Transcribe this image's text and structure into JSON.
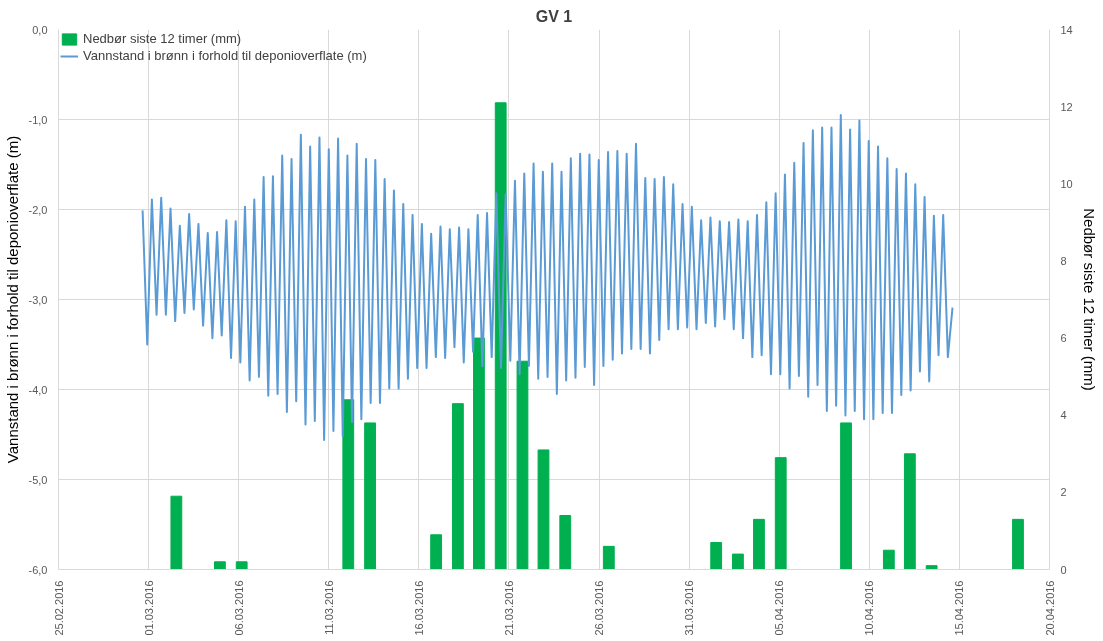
{
  "chart_data": {
    "type": "line",
    "title": "GV 1",
    "ylabel": "Vannstand i brønn i forhold til deponioverflate (m)",
    "y2label": "Nedbør siste 12 timer (mm)",
    "xlim": [
      "2016-02-25",
      "2016-04-20"
    ],
    "xticks": [
      {
        "value": "2016-02-25",
        "label": "25.02.2016"
      },
      {
        "value": "2016-03-01",
        "label": "01.03.2016"
      },
      {
        "value": "2016-03-06",
        "label": "06.03.2016"
      },
      {
        "value": "2016-03-11",
        "label": "11.03.2016"
      },
      {
        "value": "2016-03-16",
        "label": "16.03.2016"
      },
      {
        "value": "2016-03-21",
        "label": "21.03.2016"
      },
      {
        "value": "2016-03-26",
        "label": "26.03.2016"
      },
      {
        "value": "2016-03-31",
        "label": "31.03.2016"
      },
      {
        "value": "2016-04-05",
        "label": "05.04.2016"
      },
      {
        "value": "2016-04-10",
        "label": "10.04.2016"
      },
      {
        "value": "2016-04-15",
        "label": "15.04.2016"
      },
      {
        "value": "2016-04-20",
        "label": "20.04.2016"
      }
    ],
    "ylim": [
      -6,
      0
    ],
    "yticks": [
      {
        "value": 0,
        "label": "0,0"
      },
      {
        "value": -1,
        "label": "-1,0"
      },
      {
        "value": -2,
        "label": "-2,0"
      },
      {
        "value": -3,
        "label": "-3,0"
      },
      {
        "value": -4,
        "label": "-4,0"
      },
      {
        "value": -5,
        "label": "-5,0"
      },
      {
        "value": -6,
        "label": "-6,0"
      }
    ],
    "y2lim": [
      0,
      14
    ],
    "y2ticks": [
      0,
      2,
      4,
      6,
      8,
      10,
      12,
      14
    ],
    "grid": true,
    "legend": "top left",
    "series": [
      {
        "name": "Nedbør siste 12 timer (mm)",
        "type": "bar",
        "axis": "y2",
        "color": "#00b050",
        "x": [
          "2016-03-02T13:00",
          "2016-03-04T23:00",
          "2016-03-06T04:00",
          "2016-03-12T02:00",
          "2016-03-13T07:00",
          "2016-03-16T23:00",
          "2016-03-18T04:00",
          "2016-03-19T08:00",
          "2016-03-20T13:00",
          "2016-03-21T18:00",
          "2016-03-22T22:00",
          "2016-03-24T03:00",
          "2016-03-26T13:00",
          "2016-04-01T12:00",
          "2016-04-02T17:00",
          "2016-04-03T21:00",
          "2016-04-05T02:00",
          "2016-04-08T17:00",
          "2016-04-11T02:00",
          "2016-04-12T06:00",
          "2016-04-13T11:00",
          "2016-04-18T06:00"
        ],
        "values": [
          1.9,
          0.2,
          0.2,
          4.4,
          3.8,
          0.9,
          4.3,
          6.0,
          12.1,
          5.4,
          3.1,
          1.4,
          0.6,
          0.7,
          0.4,
          1.3,
          2.9,
          3.8,
          0.5,
          3.0,
          0.1,
          1.3
        ]
      },
      {
        "name": "Vannstand i brønn i forhold til deponioverflate (m)",
        "color": "#5b9bd5",
        "x": [
          "2016-02-29T16:00",
          "2016-02-29T22:12",
          "2016-03-01T04:24",
          "2016-03-01T10:36",
          "2016-03-01T16:48",
          "2016-03-01T23:00",
          "2016-03-02T05:12",
          "2016-03-02T11:24",
          "2016-03-02T17:36",
          "2016-03-02T23:48",
          "2016-03-03T06:00",
          "2016-03-03T12:12",
          "2016-03-03T18:24",
          "2016-03-04T00:36",
          "2016-03-04T06:48",
          "2016-03-04T13:00",
          "2016-03-04T19:12",
          "2016-03-05T01:24",
          "2016-03-05T07:36",
          "2016-03-05T13:48",
          "2016-03-05T20:00",
          "2016-03-06T02:12",
          "2016-03-06T08:24",
          "2016-03-06T14:36",
          "2016-03-06T20:48",
          "2016-03-07T03:00",
          "2016-03-07T09:12",
          "2016-03-07T15:24",
          "2016-03-07T21:36",
          "2016-03-08T03:48",
          "2016-03-08T10:00",
          "2016-03-08T16:12",
          "2016-03-08T22:24",
          "2016-03-09T04:36",
          "2016-03-09T10:48",
          "2016-03-09T17:00",
          "2016-03-09T23:12",
          "2016-03-10T05:24",
          "2016-03-10T11:36",
          "2016-03-10T17:48",
          "2016-03-11T00:00",
          "2016-03-11T06:12",
          "2016-03-11T12:24",
          "2016-03-11T18:36",
          "2016-03-12T00:48",
          "2016-03-12T07:00",
          "2016-03-12T13:12",
          "2016-03-12T19:24",
          "2016-03-13T01:36",
          "2016-03-13T07:48",
          "2016-03-13T14:00",
          "2016-03-13T20:12",
          "2016-03-14T02:24",
          "2016-03-14T08:36",
          "2016-03-14T14:48",
          "2016-03-14T21:00",
          "2016-03-15T03:12",
          "2016-03-15T09:24",
          "2016-03-15T15:36",
          "2016-03-15T21:48",
          "2016-03-16T04:00",
          "2016-03-16T10:12",
          "2016-03-16T16:24",
          "2016-03-16T22:36",
          "2016-03-17T04:48",
          "2016-03-17T11:00",
          "2016-03-17T17:12",
          "2016-03-17T23:24",
          "2016-03-18T05:36",
          "2016-03-18T11:48",
          "2016-03-18T18:00",
          "2016-03-19T00:12",
          "2016-03-19T06:24",
          "2016-03-19T12:36",
          "2016-03-19T18:48",
          "2016-03-20T01:00",
          "2016-03-20T07:12",
          "2016-03-20T13:24",
          "2016-03-20T19:36",
          "2016-03-21T01:48",
          "2016-03-21T08:00",
          "2016-03-21T14:12",
          "2016-03-21T20:24",
          "2016-03-22T02:36",
          "2016-03-22T08:48",
          "2016-03-22T15:00",
          "2016-03-22T21:12",
          "2016-03-23T03:24",
          "2016-03-23T09:36",
          "2016-03-23T15:48",
          "2016-03-23T22:00",
          "2016-03-24T04:12",
          "2016-03-24T10:24",
          "2016-03-24T16:36",
          "2016-03-24T22:48",
          "2016-03-25T05:00",
          "2016-03-25T11:12",
          "2016-03-25T17:24",
          "2016-03-25T23:36",
          "2016-03-26T05:48",
          "2016-03-26T12:00",
          "2016-03-26T18:12",
          "2016-03-27T00:24",
          "2016-03-27T06:36",
          "2016-03-27T12:48",
          "2016-03-27T19:00",
          "2016-03-28T01:12",
          "2016-03-28T07:24",
          "2016-03-28T13:36",
          "2016-03-28T19:48",
          "2016-03-29T02:00",
          "2016-03-29T08:12",
          "2016-03-29T14:24",
          "2016-03-29T20:36",
          "2016-03-30T02:48",
          "2016-03-30T09:00",
          "2016-03-30T15:12",
          "2016-03-30T21:24",
          "2016-03-31T03:36",
          "2016-03-31T09:48",
          "2016-03-31T16:00",
          "2016-03-31T22:12",
          "2016-04-01T04:24",
          "2016-04-01T10:36",
          "2016-04-01T16:48",
          "2016-04-01T23:00",
          "2016-04-02T05:12",
          "2016-04-02T11:24",
          "2016-04-02T17:36",
          "2016-04-02T23:48",
          "2016-04-03T06:00",
          "2016-04-03T12:12",
          "2016-04-03T18:24",
          "2016-04-04T00:36",
          "2016-04-04T06:48",
          "2016-04-04T13:00",
          "2016-04-04T19:12",
          "2016-04-05T01:24",
          "2016-04-05T07:36",
          "2016-04-05T13:48",
          "2016-04-05T20:00",
          "2016-04-06T02:12",
          "2016-04-06T08:24",
          "2016-04-06T14:36",
          "2016-04-06T20:48",
          "2016-04-07T03:00",
          "2016-04-07T09:12",
          "2016-04-07T15:24",
          "2016-04-07T21:36",
          "2016-04-08T03:48",
          "2016-04-08T10:00",
          "2016-04-08T16:12",
          "2016-04-08T22:24",
          "2016-04-09T04:36",
          "2016-04-09T10:48",
          "2016-04-09T17:00",
          "2016-04-09T23:12",
          "2016-04-10T05:24",
          "2016-04-10T11:36",
          "2016-04-10T17:48",
          "2016-04-11T00:00",
          "2016-04-11T06:12",
          "2016-04-11T12:24",
          "2016-04-11T18:36",
          "2016-04-12T00:48",
          "2016-04-12T07:00",
          "2016-04-12T13:12",
          "2016-04-12T19:24",
          "2016-04-13T01:36",
          "2016-04-13T07:48",
          "2016-04-13T14:00",
          "2016-04-13T20:12",
          "2016-04-14T02:24",
          "2016-04-14T08:36",
          "2016-04-14T14:48"
        ],
        "values": [
          -2.01,
          -3.5,
          -1.89,
          -3.17,
          -1.87,
          -3.17,
          -1.99,
          -3.24,
          -2.18,
          -3.15,
          -2.05,
          -3.11,
          -2.16,
          -3.29,
          -2.26,
          -3.43,
          -2.25,
          -3.4,
          -2.12,
          -3.65,
          -2.13,
          -3.7,
          -1.97,
          -3.9,
          -1.89,
          -3.86,
          -1.64,
          -4.07,
          -1.63,
          -4.05,
          -1.4,
          -4.25,
          -1.44,
          -4.13,
          -1.17,
          -4.39,
          -1.3,
          -4.35,
          -1.2,
          -4.56,
          -1.33,
          -4.46,
          -1.21,
          -4.52,
          -1.4,
          -4.36,
          -1.27,
          -4.33,
          -1.44,
          -4.15,
          -1.45,
          -4.15,
          -1.66,
          -3.99,
          -1.79,
          -3.99,
          -1.94,
          -3.88,
          -2.06,
          -3.76,
          -2.16,
          -3.76,
          -2.27,
          -3.64,
          -2.19,
          -3.65,
          -2.22,
          -3.53,
          -2.2,
          -3.7,
          -2.22,
          -3.58,
          -2.06,
          -3.74,
          -2.04,
          -3.64,
          -1.82,
          -3.76,
          -1.83,
          -3.68,
          -1.68,
          -3.83,
          -1.6,
          -3.74,
          -1.49,
          -3.88,
          -1.58,
          -3.86,
          -1.49,
          -4.05,
          -1.58,
          -3.9,
          -1.43,
          -3.87,
          -1.38,
          -3.75,
          -1.39,
          -3.95,
          -1.45,
          -3.74,
          -1.36,
          -3.67,
          -1.35,
          -3.6,
          -1.38,
          -3.55,
          -1.27,
          -3.55,
          -1.65,
          -3.6,
          -1.66,
          -3.45,
          -1.64,
          -3.33,
          -1.72,
          -3.33,
          -1.94,
          -3.31,
          -1.97,
          -3.33,
          -2.12,
          -3.26,
          -2.09,
          -3.3,
          -2.13,
          -3.22,
          -2.14,
          -3.33,
          -2.11,
          -3.43,
          -2.13,
          -3.64,
          -2.06,
          -3.62,
          -1.92,
          -3.83,
          -1.82,
          -3.83,
          -1.61,
          -3.99,
          -1.48,
          -3.85,
          -1.26,
          -4.08,
          -1.12,
          -3.95,
          -1.09,
          -4.24,
          -1.09,
          -4.18,
          -0.95,
          -4.29,
          -1.11,
          -4.24,
          -1.01,
          -4.33,
          -1.24,
          -4.33,
          -1.3,
          -4.26,
          -1.43,
          -4.26,
          -1.55,
          -4.06,
          -1.6,
          -4.01,
          -1.72,
          -3.8,
          -1.86,
          -3.91,
          -2.07,
          -3.62,
          -2.06,
          -3.64,
          -3.09
        ]
      }
    ]
  }
}
